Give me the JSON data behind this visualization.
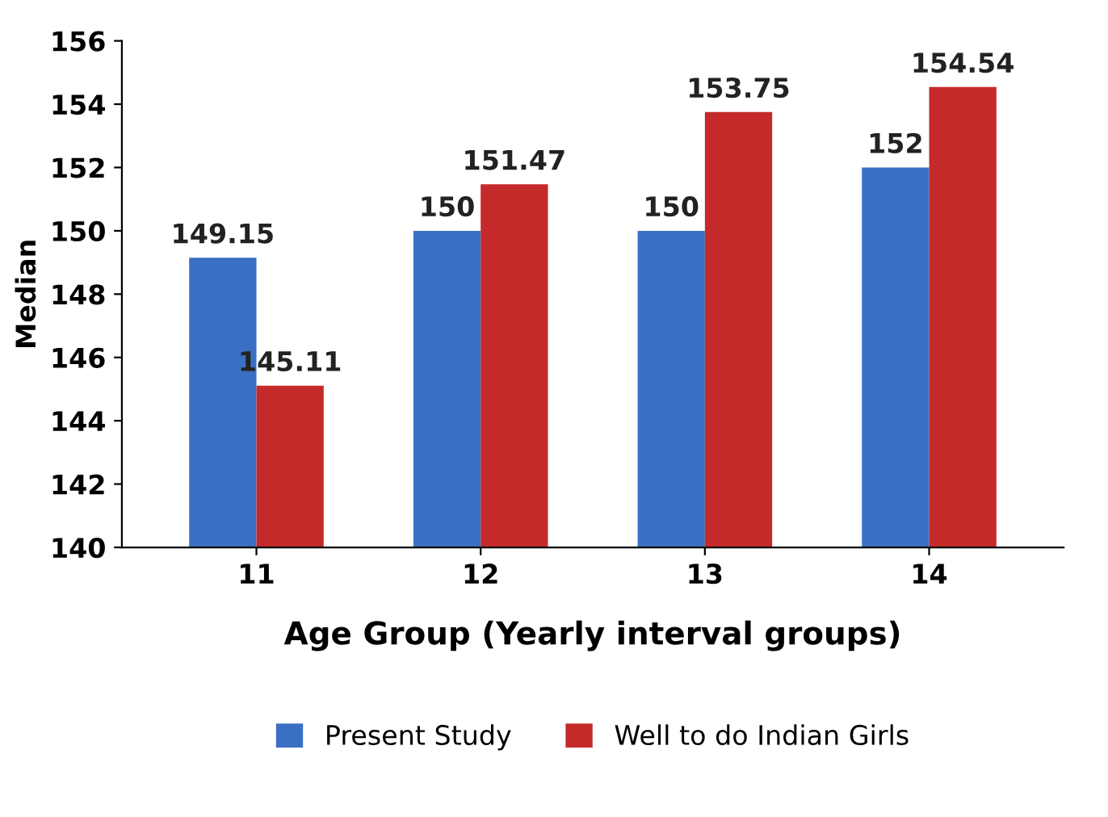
{
  "chart_data": {
    "type": "bar",
    "xlabel": "Age Group (Yearly interval groups)",
    "ylabel": "Median",
    "categories": [
      "11",
      "12",
      "13",
      "14"
    ],
    "series": [
      {
        "name": "Present Study",
        "color": "#3b6fc3",
        "values": [
          149.15,
          150,
          150,
          152
        ]
      },
      {
        "name": "Well to do Indian Girls",
        "color": "#c42a2a",
        "values": [
          145.11,
          151.47,
          153.75,
          154.54
        ]
      }
    ],
    "ylim": [
      140,
      156
    ],
    "yticks": [
      140,
      142,
      144,
      146,
      148,
      150,
      152,
      154,
      156
    ],
    "data_labels": true,
    "grid": false,
    "legend": "bottom"
  }
}
